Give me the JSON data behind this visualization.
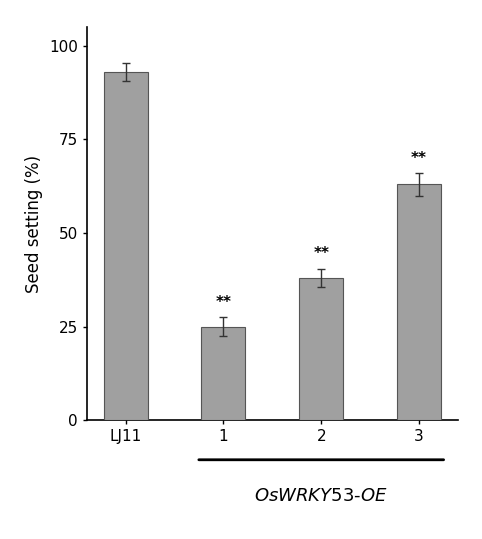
{
  "categories": [
    "LJ11",
    "1",
    "2",
    "3"
  ],
  "values": [
    93,
    25,
    38,
    63
  ],
  "errors": [
    2.5,
    2.5,
    2.5,
    3.0
  ],
  "bar_color": "#a0a0a0",
  "bar_width": 0.45,
  "ylim": [
    0,
    105
  ],
  "yticks": [
    0,
    25,
    50,
    75,
    100
  ],
  "ylabel": "Seed setting (%)",
  "ylabel_fontsize": 12,
  "tick_fontsize": 11,
  "significance": [
    "",
    "**",
    "**",
    "**"
  ],
  "sig_fontsize": 11,
  "xlabel_line_label_fontsize": 13,
  "background_color": "#ffffff",
  "bar_edge_color": "#555555",
  "error_color": "#333333"
}
